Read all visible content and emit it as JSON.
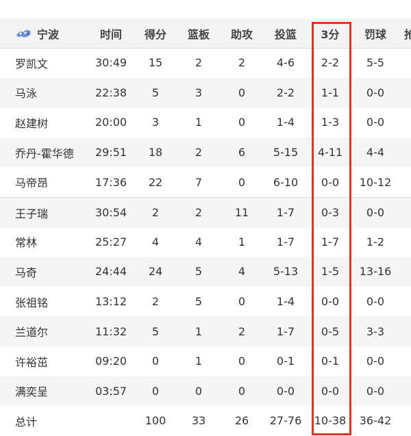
{
  "team": {
    "name": "宁波",
    "logo_icon": "ningbo-team-logo-icon"
  },
  "columns": [
    "时间",
    "得分",
    "篮板",
    "助攻",
    "投篮",
    "3分",
    "罚球",
    "抢"
  ],
  "players": [
    [
      "罗凯文",
      "30:49",
      "15",
      "2",
      "2",
      "4-6",
      "2-2",
      "5-5"
    ],
    [
      "马泳",
      "22:38",
      "5",
      "3",
      "0",
      "2-2",
      "1-1",
      "0-0"
    ],
    [
      "赵建树",
      "20:00",
      "3",
      "1",
      "0",
      "1-4",
      "1-3",
      "0-0"
    ],
    [
      "乔丹-霍华德",
      "29:51",
      "18",
      "2",
      "6",
      "5-15",
      "4-11",
      "4-4"
    ],
    [
      "马帝昂",
      "17:36",
      "22",
      "7",
      "0",
      "6-10",
      "0-0",
      "10-12"
    ],
    [
      "王子瑞",
      "30:54",
      "2",
      "2",
      "11",
      "1-7",
      "0-3",
      "0-0"
    ],
    [
      "常林",
      "25:27",
      "4",
      "4",
      "1",
      "1-7",
      "1-7",
      "1-2"
    ],
    [
      "马奇",
      "24:44",
      "24",
      "5",
      "4",
      "5-13",
      "1-5",
      "13-16"
    ],
    [
      "张祖铭",
      "13:12",
      "2",
      "5",
      "0",
      "1-4",
      "0-0",
      "0-0"
    ],
    [
      "兰道尔",
      "11:32",
      "5",
      "1",
      "2",
      "1-7",
      "0-5",
      "3-3"
    ],
    [
      "许裕茁",
      "09:20",
      "0",
      "1",
      "0",
      "0-1",
      "0-1",
      "0-0"
    ],
    [
      "满奕呈",
      "03:57",
      "0",
      "0",
      "0",
      "0-0",
      "0-0",
      "0-0"
    ]
  ],
  "total": [
    "总计",
    "",
    "100",
    "33",
    "26",
    "27-76",
    "10-38",
    "36-42"
  ],
  "highlight": {
    "column": "3分",
    "color": "#e3321f"
  }
}
